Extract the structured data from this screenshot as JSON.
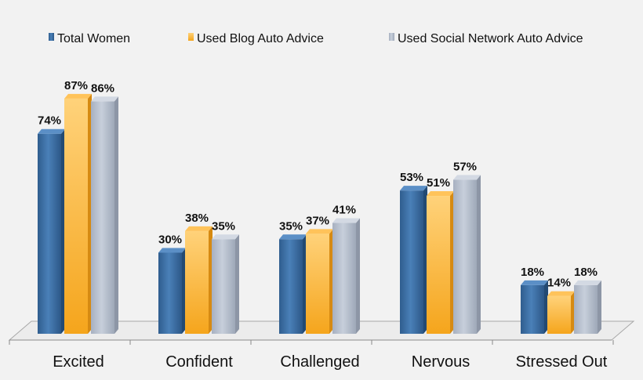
{
  "chart_data": {
    "type": "bar",
    "categories": [
      "Excited",
      "Confident",
      "Challenged",
      "Nervous",
      "Stressed Out"
    ],
    "series": [
      {
        "name": "Total Women",
        "values": [
          74,
          30,
          35,
          53,
          18
        ],
        "labels": [
          "74%",
          "30%",
          "35%",
          "53%",
          "18%"
        ]
      },
      {
        "name": "Used Blog Auto Advice",
        "values": [
          87,
          38,
          37,
          51,
          14
        ],
        "labels": [
          "87%",
          "38%",
          "37%",
          "51%",
          "14%"
        ]
      },
      {
        "name": "Used Social Network Auto Advice",
        "values": [
          86,
          35,
          41,
          57,
          18
        ],
        "labels": [
          "86%",
          "35%",
          "41%",
          "57%",
          "18%"
        ]
      }
    ],
    "title": "",
    "xlabel": "",
    "ylabel": "",
    "ylim": [
      0,
      100
    ],
    "grid": false,
    "legend": "top-center",
    "colors": [
      "#3a6ea5",
      "#f5a623",
      "#b3bccb"
    ]
  }
}
